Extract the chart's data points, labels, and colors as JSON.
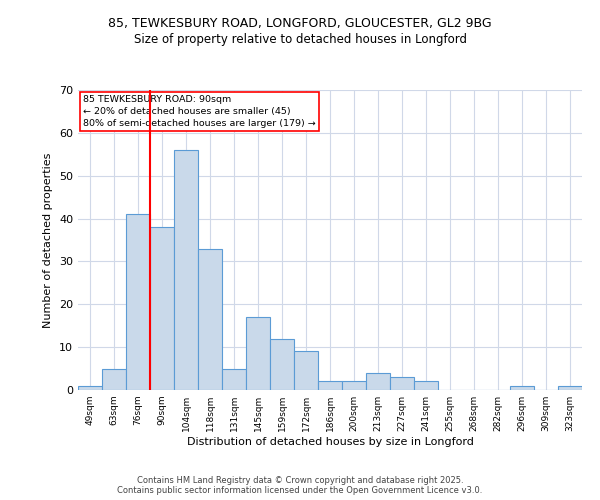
{
  "title_line1": "85, TEWKESBURY ROAD, LONGFORD, GLOUCESTER, GL2 9BG",
  "title_line2": "Size of property relative to detached houses in Longford",
  "xlabel": "Distribution of detached houses by size in Longford",
  "ylabel": "Number of detached properties",
  "categories": [
    "49sqm",
    "63sqm",
    "76sqm",
    "90sqm",
    "104sqm",
    "118sqm",
    "131sqm",
    "145sqm",
    "159sqm",
    "172sqm",
    "186sqm",
    "200sqm",
    "213sqm",
    "227sqm",
    "241sqm",
    "255sqm",
    "268sqm",
    "282sqm",
    "296sqm",
    "309sqm",
    "323sqm"
  ],
  "values": [
    1,
    5,
    41,
    38,
    56,
    33,
    5,
    17,
    12,
    9,
    2,
    2,
    4,
    3,
    2,
    0,
    0,
    0,
    1,
    0,
    1
  ],
  "bar_color": "#c9d9ea",
  "bar_edge_color": "#5b9bd5",
  "red_line_index": 3,
  "ylim": [
    0,
    70
  ],
  "yticks": [
    0,
    10,
    20,
    30,
    40,
    50,
    60,
    70
  ],
  "background_color": "#ffffff",
  "grid_color": "#d0d8e8",
  "annotation_title": "85 TEWKESBURY ROAD: 90sqm",
  "annotation_line2": "← 20% of detached houses are smaller (45)",
  "annotation_line3": "80% of semi-detached houses are larger (179) →",
  "footer_line1": "Contains HM Land Registry data © Crown copyright and database right 2025.",
  "footer_line2": "Contains public sector information licensed under the Open Government Licence v3.0."
}
